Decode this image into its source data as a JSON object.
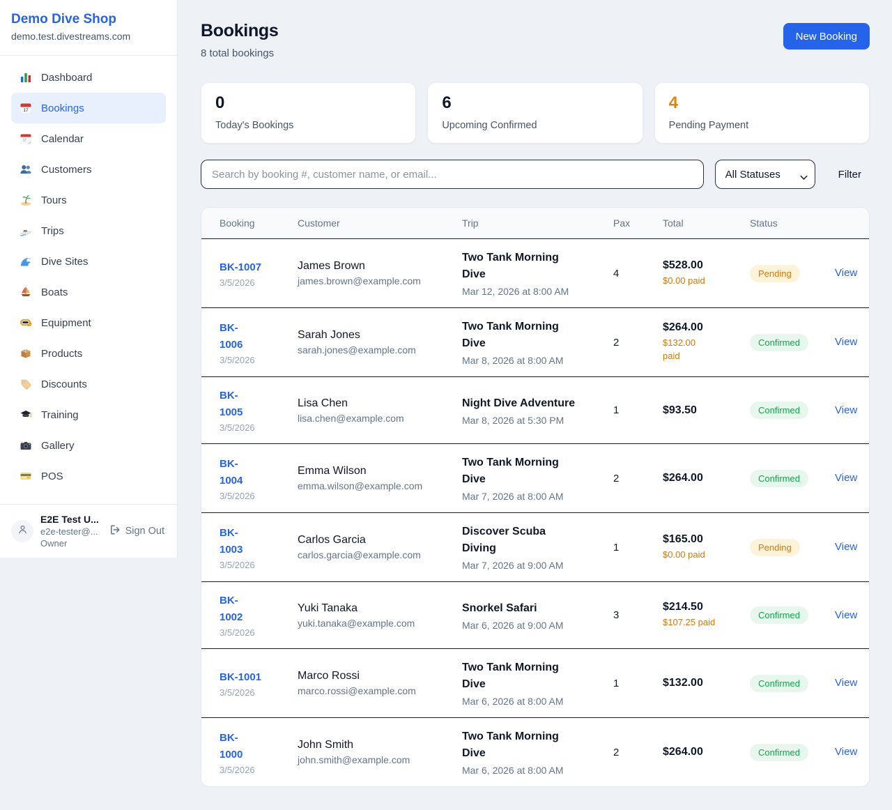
{
  "sidebar": {
    "brand": {
      "name": "Demo Dive Shop",
      "domain": "demo.test.divestreams.com"
    },
    "items": [
      {
        "id": "dashboard",
        "label": "Dashboard",
        "icon": "bar-chart-icon",
        "active": false
      },
      {
        "id": "bookings",
        "label": "Bookings",
        "icon": "calendar-date-icon",
        "active": true
      },
      {
        "id": "calendar",
        "label": "Calendar",
        "icon": "calendar-icon",
        "active": false
      },
      {
        "id": "customers",
        "label": "Customers",
        "icon": "users-icon",
        "active": false
      },
      {
        "id": "tours",
        "label": "Tours",
        "icon": "island-icon",
        "active": false
      },
      {
        "id": "trips",
        "label": "Trips",
        "icon": "speedboat-icon",
        "active": false
      },
      {
        "id": "dive-sites",
        "label": "Dive Sites",
        "icon": "wave-icon",
        "active": false
      },
      {
        "id": "boats",
        "label": "Boats",
        "icon": "sailboat-icon",
        "active": false
      },
      {
        "id": "equipment",
        "label": "Equipment",
        "icon": "dive-mask-icon",
        "active": false
      },
      {
        "id": "products",
        "label": "Products",
        "icon": "package-icon",
        "active": false
      },
      {
        "id": "discounts",
        "label": "Discounts",
        "icon": "tag-icon",
        "active": false
      },
      {
        "id": "training",
        "label": "Training",
        "icon": "graduation-cap-icon",
        "active": false
      },
      {
        "id": "gallery",
        "label": "Gallery",
        "icon": "camera-icon",
        "active": false
      },
      {
        "id": "pos",
        "label": "POS",
        "icon": "credit-card-icon",
        "active": false
      }
    ],
    "user": {
      "name": "E2E Test U...",
      "email": "e2e-tester@...",
      "role": "Owner",
      "sign_out_label": "Sign Out"
    }
  },
  "header": {
    "title": "Bookings",
    "subtitle": "8 total bookings",
    "new_booking_label": "New Booking"
  },
  "stats": [
    {
      "value": "0",
      "label": "Today's Bookings",
      "value_color": "#0f172a"
    },
    {
      "value": "6",
      "label": "Upcoming Confirmed",
      "value_color": "#0f172a"
    },
    {
      "value": "4",
      "label": "Pending Payment",
      "value_color": "#df860e"
    }
  ],
  "filters": {
    "search_placeholder": "Search by booking #, customer name, or email...",
    "status_selected": "All Statuses",
    "filter_label": "Filter"
  },
  "table": {
    "headers": [
      "Booking",
      "Customer",
      "Trip",
      "Pax",
      "Total",
      "Status",
      ""
    ],
    "rows": [
      {
        "number": "BK-1007",
        "date": "3/5/2026",
        "customer": "James Brown",
        "email": "james.brown@example.com",
        "trip": "Two Tank Morning\nDive",
        "trip_date": "Mar 12, 2026 at 8:00 AM",
        "pax": "4",
        "total": "$528.00",
        "paid": "$0.00 paid",
        "status": "Pending",
        "action": "View"
      },
      {
        "number": "BK-\n1006",
        "date": "3/5/2026",
        "customer": "Sarah Jones",
        "email": "sarah.jones@example.com",
        "trip": "Two Tank Morning\nDive",
        "trip_date": "Mar 8, 2026 at 8:00 AM",
        "pax": "2",
        "total": "$264.00",
        "paid": "$132.00\npaid",
        "status": "Confirmed",
        "action": "View"
      },
      {
        "number": "BK-\n1005",
        "date": "3/5/2026",
        "customer": "Lisa Chen",
        "email": "lisa.chen@example.com",
        "trip": "Night Dive Adventure",
        "trip_date": "Mar 8, 2026 at 5:30 PM",
        "pax": "1",
        "total": "$93.50",
        "paid": "",
        "status": "Confirmed",
        "action": "View"
      },
      {
        "number": "BK-\n1004",
        "date": "3/5/2026",
        "customer": "Emma Wilson",
        "email": "emma.wilson@example.com",
        "trip": "Two Tank Morning\nDive",
        "trip_date": "Mar 7, 2026 at 8:00 AM",
        "pax": "2",
        "total": "$264.00",
        "paid": "",
        "status": "Confirmed",
        "action": "View"
      },
      {
        "number": "BK-\n1003",
        "date": "3/5/2026",
        "customer": "Carlos Garcia",
        "email": "carlos.garcia@example.com",
        "trip": "Discover Scuba\nDiving",
        "trip_date": "Mar 7, 2026 at 9:00 AM",
        "pax": "1",
        "total": "$165.00",
        "paid": "$0.00 paid",
        "status": "Pending",
        "action": "View"
      },
      {
        "number": "BK-\n1002",
        "date": "3/5/2026",
        "customer": "Yuki Tanaka",
        "email": "yuki.tanaka@example.com",
        "trip": "Snorkel Safari",
        "trip_date": "Mar 6, 2026 at 9:00 AM",
        "pax": "3",
        "total": "$214.50",
        "paid": "$107.25 paid",
        "status": "Confirmed",
        "action": "View"
      },
      {
        "number": "BK-1001",
        "date": "3/5/2026",
        "customer": "Marco Rossi",
        "email": "marco.rossi@example.com",
        "trip": "Two Tank Morning\nDive",
        "trip_date": "Mar 6, 2026 at 8:00 AM",
        "pax": "1",
        "total": "$132.00",
        "paid": "",
        "status": "Confirmed",
        "action": "View"
      },
      {
        "number": "BK-\n1000",
        "date": "3/5/2026",
        "customer": "John Smith",
        "email": "john.smith@example.com",
        "trip": "Two Tank Morning\nDive",
        "trip_date": "Mar 6, 2026 at 8:00 AM",
        "pax": "2",
        "total": "$264.00",
        "paid": "",
        "status": "Confirmed",
        "action": "View"
      }
    ]
  },
  "statuses": {
    "Pending": {
      "text_color": "#d97706",
      "bg_color": "#fcf3d9"
    },
    "Confirmed": {
      "text_color": "#16a34a",
      "bg_color": "#e8f7ee"
    }
  },
  "colors": {
    "accent_blue": "#2563eb",
    "orange": "#df860e",
    "green": "#16a34a",
    "page_bg": "#eef1f6",
    "row_divider": "#141a26"
  }
}
